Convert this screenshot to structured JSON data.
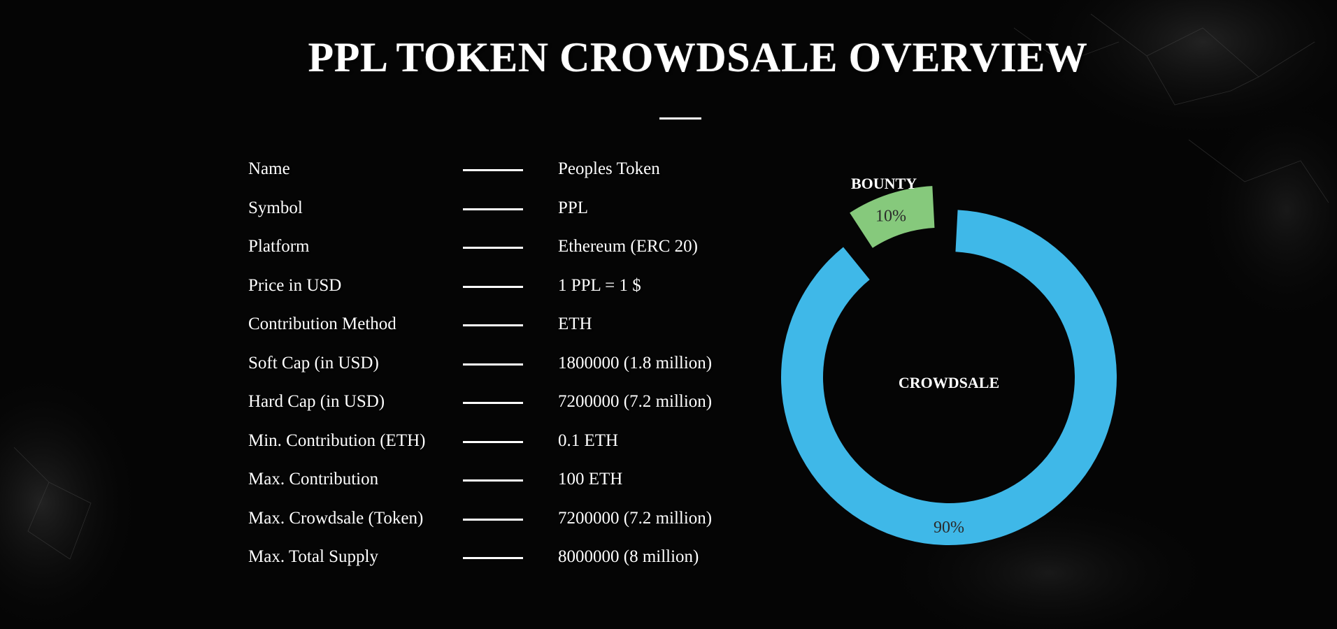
{
  "page": {
    "title": "PPL TOKEN CROWDSALE OVERVIEW"
  },
  "details": [
    {
      "label": "Name",
      "value": "Peoples Token"
    },
    {
      "label": "Symbol",
      "value": "PPL"
    },
    {
      "label": "Platform",
      "value": "Ethereum (ERC 20)"
    },
    {
      "label": "Price in USD",
      "value": "1 PPL = 1 $"
    },
    {
      "label": "Contribution Method",
      "value": "ETH"
    },
    {
      "label": "Soft Cap (in USD)",
      "value": "1800000 (1.8 million)"
    },
    {
      "label": "Hard Cap (in USD)",
      "value": "7200000 (7.2 million)"
    },
    {
      "label": "Min. Contribution (ETH)",
      "value": "0.1 ETH"
    },
    {
      "label": "Max. Contribution",
      "value": "100 ETH"
    },
    {
      "label": "Max. Crowdsale (Token)",
      "value": "7200000 (7.2 million)"
    },
    {
      "label": "Max. Total Supply",
      "value": "8000000 (8 million)"
    }
  ],
  "chart_data": {
    "type": "pie",
    "categories": [
      "BOUNTY",
      "CROWDSALE"
    ],
    "values": [
      10,
      90
    ],
    "value_labels": [
      "10%",
      "90%"
    ],
    "colors": [
      "#86c97c",
      "#3fb8e8"
    ]
  }
}
